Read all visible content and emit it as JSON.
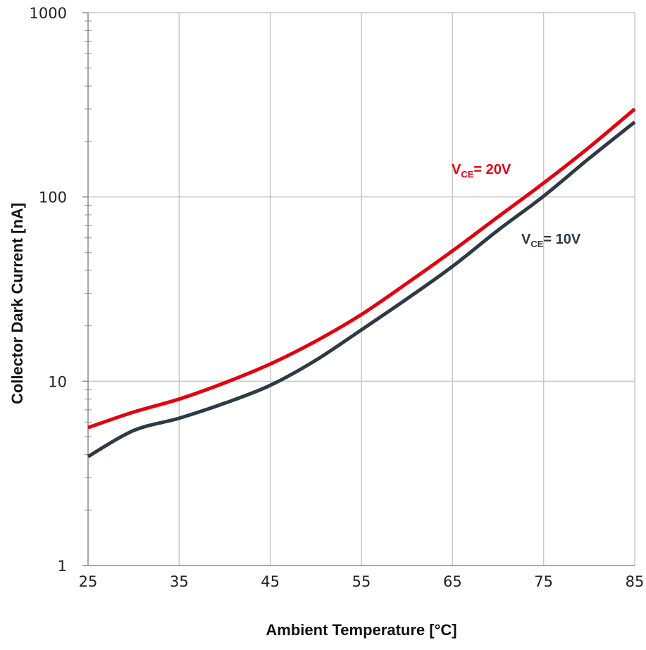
{
  "chart_data": {
    "type": "line",
    "xlabel": "Ambient Temperature [°C]",
    "ylabel": "Collector Dark Current [nA]",
    "xlim": [
      25,
      85
    ],
    "ylim": [
      1,
      1000
    ],
    "yscale": "log",
    "grid": true,
    "x_ticks": [
      "25",
      "35",
      "45",
      "55",
      "65",
      "75",
      "85"
    ],
    "y_ticks": [
      "1",
      "10",
      "100",
      "1000"
    ],
    "series": [
      {
        "name": "VCE= 20V",
        "label_main": "V",
        "label_sub": "CE",
        "label_rest": "= 20V",
        "color": "#e3000f",
        "x": [
          25,
          30,
          35,
          40,
          45,
          50,
          55,
          60,
          65,
          70,
          75,
          80,
          85
        ],
        "y": [
          5.6,
          6.8,
          8.0,
          9.8,
          12.4,
          16.5,
          23,
          34,
          51,
          78,
          119,
          186,
          300
        ]
      },
      {
        "name": "VCE= 10V",
        "label_main": "V",
        "label_sub": "CE",
        "label_rest": "= 10V",
        "color": "#2e3a44",
        "x": [
          25,
          30,
          35,
          40,
          45,
          50,
          55,
          60,
          65,
          70,
          75,
          80,
          85
        ],
        "y": [
          3.9,
          5.4,
          6.3,
          7.6,
          9.5,
          13.0,
          19.0,
          28,
          42,
          66,
          101,
          162,
          255
        ]
      }
    ]
  }
}
